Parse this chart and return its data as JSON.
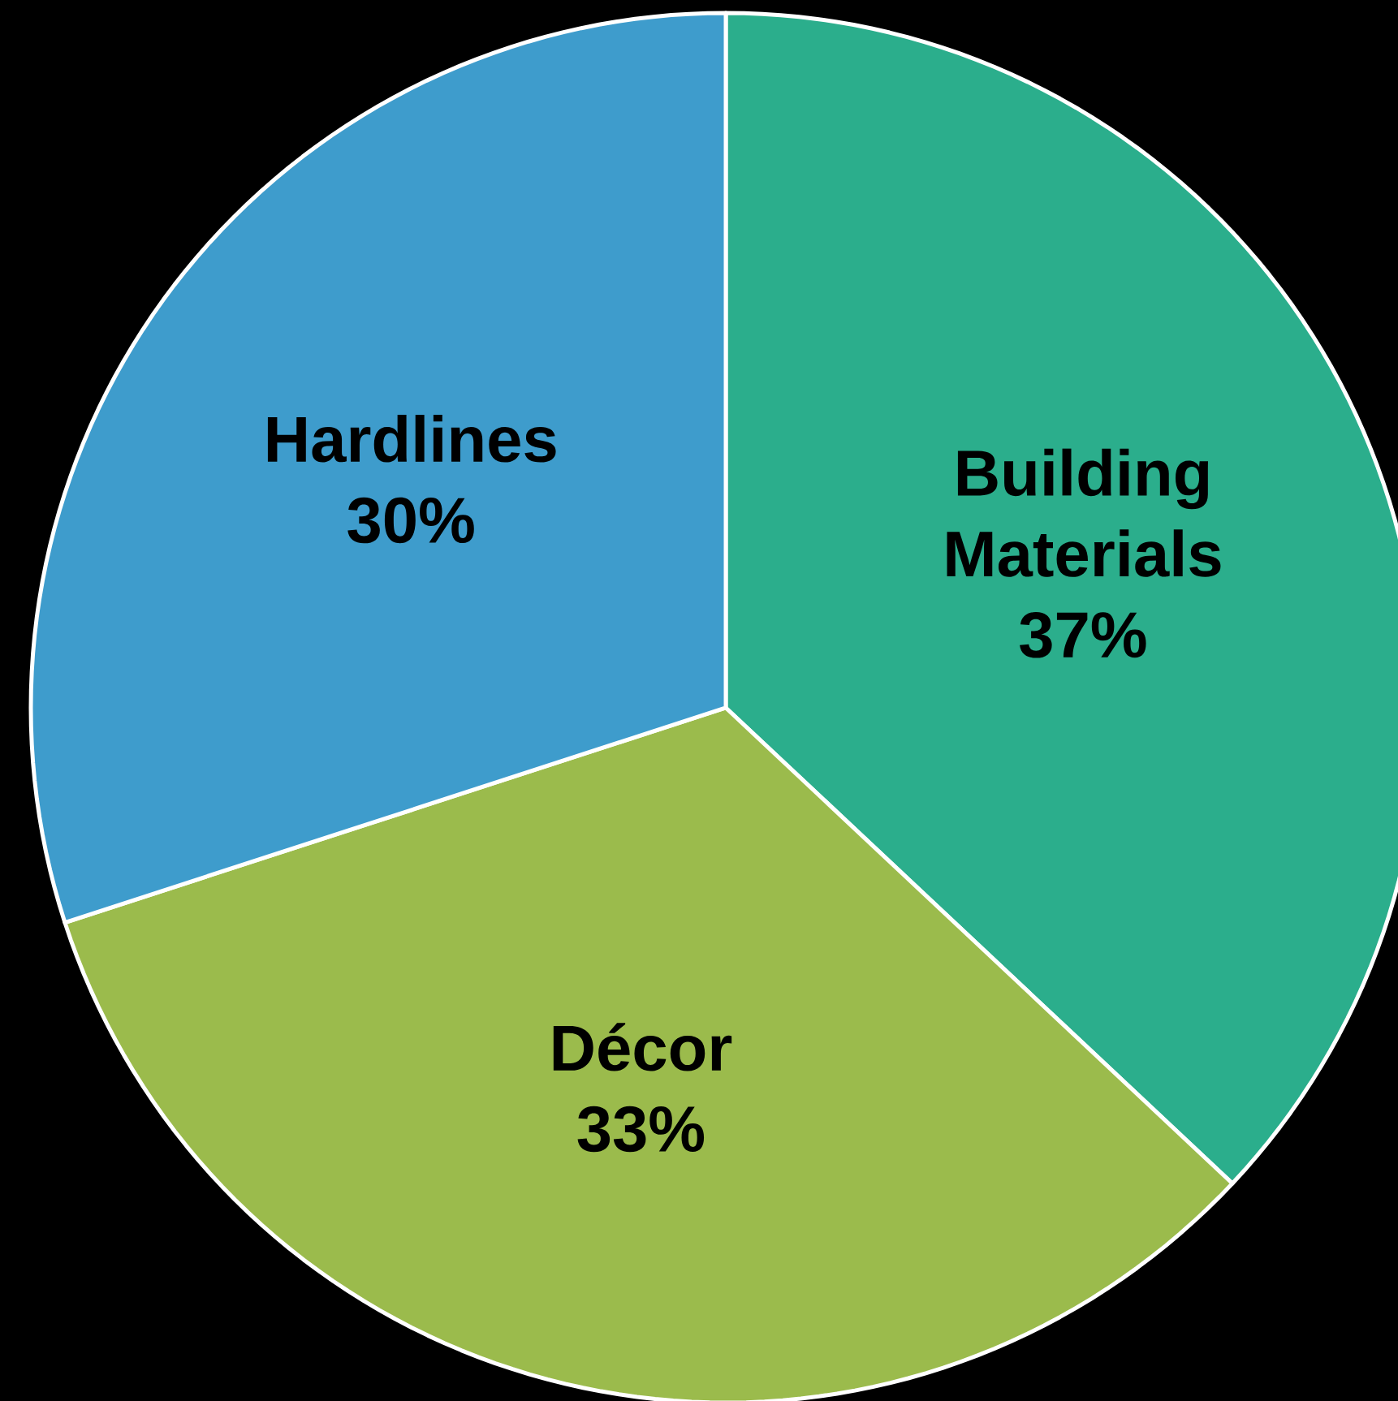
{
  "chart_data": {
    "type": "pie",
    "categories": [
      "Building Materials",
      "Décor",
      "Hardlines"
    ],
    "values": [
      37,
      33,
      30
    ],
    "value_labels": [
      "37%",
      "33%",
      "30%"
    ],
    "colors": [
      "#2bae8c",
      "#9bbb4c",
      "#3e9ccc"
    ]
  }
}
